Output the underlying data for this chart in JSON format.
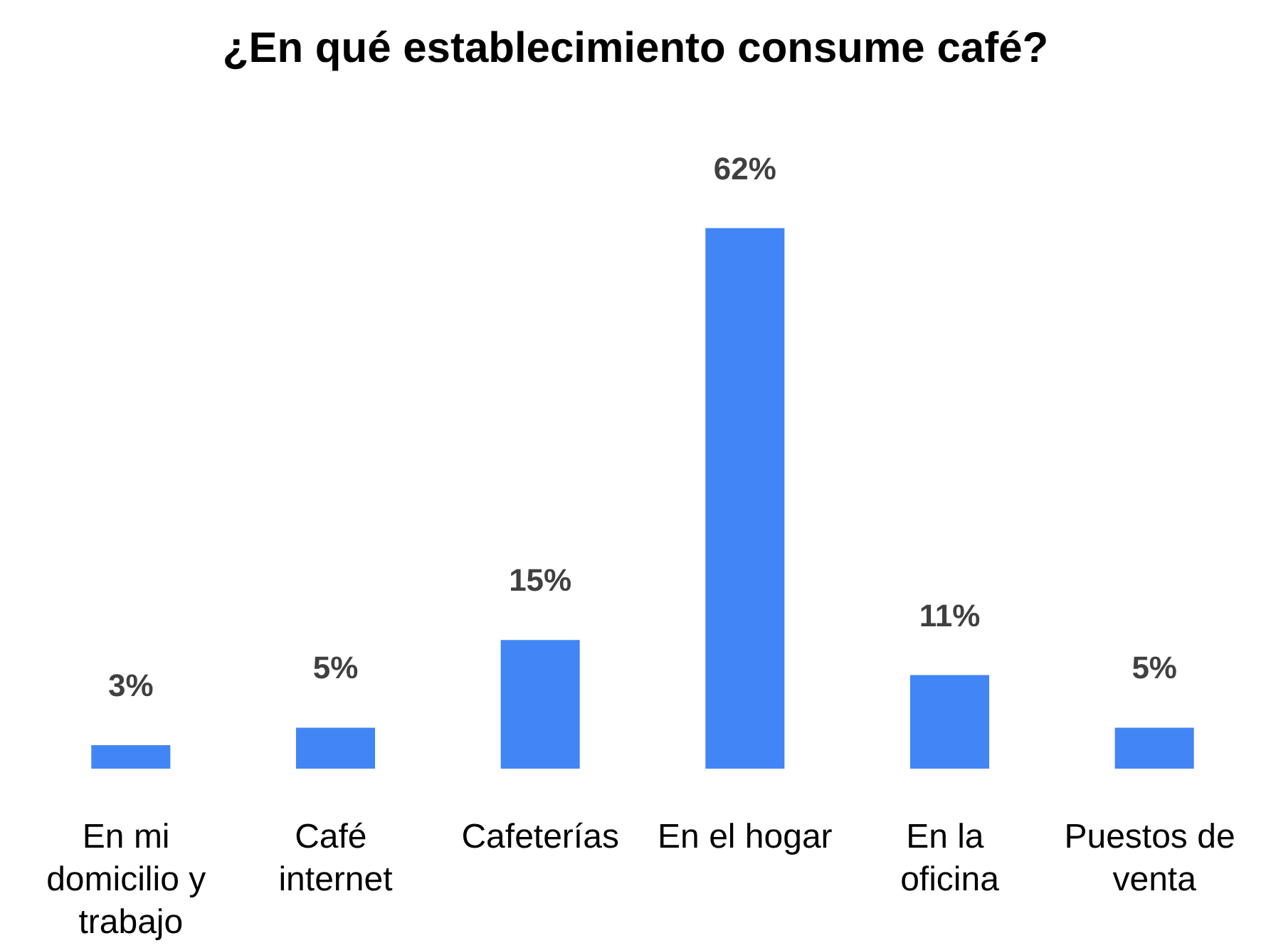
{
  "chart_data": {
    "type": "bar",
    "title": "¿En qué establecimiento consume café?",
    "categories": [
      "En mi domicilio y trabajo",
      "Café internet",
      "Cafeterías",
      "En el hogar",
      "En la oficina",
      "Puestos de venta"
    ],
    "values": [
      3,
      5,
      15,
      62,
      11,
      5
    ],
    "value_labels": [
      "3%",
      "5%",
      "15%",
      "62%",
      "11%",
      "5%"
    ],
    "color": "#4285f4"
  }
}
